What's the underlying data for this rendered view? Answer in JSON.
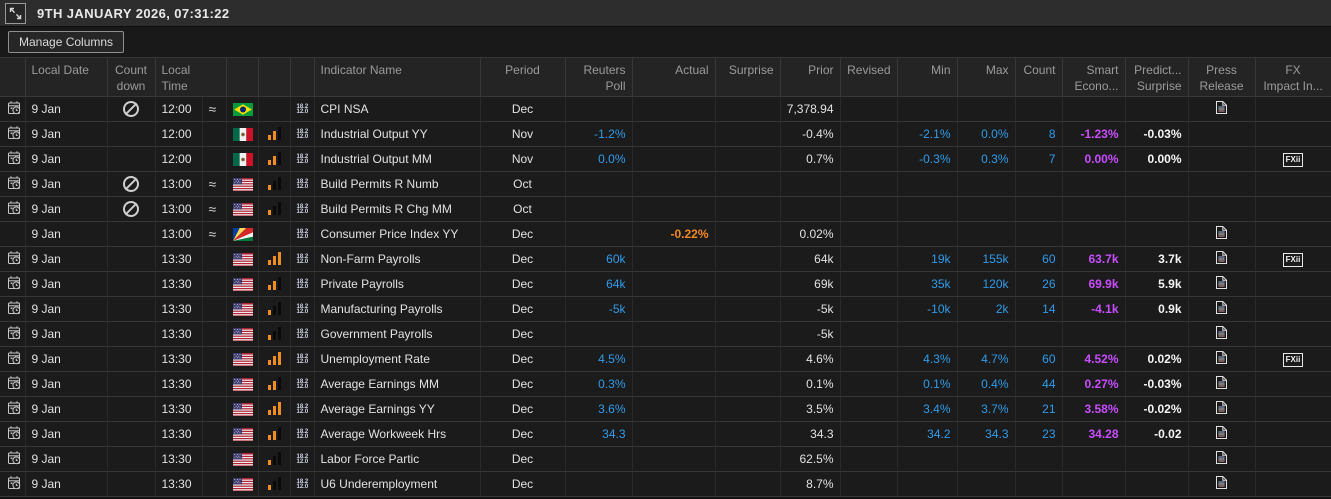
{
  "titlebar": {
    "title": "9TH JANUARY 2026, 07:31:22"
  },
  "toolbar": {
    "manage_columns_label": "Manage Columns"
  },
  "colors": {
    "poll_blue": "#2f9ceb",
    "smart_magenta": "#c94dff",
    "actual_orange": "#f5891f",
    "importance_orange": "#ef8d1e"
  },
  "icons": {
    "fx_impact_label": "FXii",
    "mini_table_icon_lines": [
      "18.2",
      "12.0"
    ]
  },
  "table": {
    "headers": [
      "",
      "Local Date",
      "Count\ndown",
      "Local\nTime",
      "",
      "",
      "",
      "",
      "Indicator Name",
      "Period",
      "Reuters\nPoll",
      "Actual",
      "Surprise",
      "Prior",
      "Revised",
      "Min",
      "Max",
      "Count",
      "Smart\nEcono...",
      "Predict...\nSurprise",
      "Press\nRelease",
      "FX\nImpact In..."
    ],
    "rows": [
      {
        "calendar": true,
        "local_date": "9 Jan",
        "countdown_blocked": true,
        "local_time": "12:00",
        "approx": true,
        "country": "brazil",
        "importance": null,
        "name": "CPI NSA",
        "period": "Dec",
        "reuters_poll": "",
        "actual": "",
        "surprise": "",
        "prior": "7,378.94",
        "revised": "",
        "min": "",
        "max": "",
        "count": "",
        "smart": "",
        "predict": "",
        "press_release": true,
        "fx_impact": false
      },
      {
        "calendar": true,
        "local_date": "9 Jan",
        "countdown_blocked": false,
        "local_time": "12:00",
        "approx": false,
        "country": "mexico",
        "importance": 2,
        "name": "Industrial Output YY",
        "period": "Nov",
        "reuters_poll": "-1.2%",
        "actual": "",
        "surprise": "",
        "prior": "-0.4%",
        "revised": "",
        "min": "-2.1%",
        "max": "0.0%",
        "count": "8",
        "smart": "-1.23%",
        "predict": "-0.03%",
        "press_release": false,
        "fx_impact": false
      },
      {
        "calendar": true,
        "local_date": "9 Jan",
        "countdown_blocked": false,
        "local_time": "12:00",
        "approx": false,
        "country": "mexico",
        "importance": 2,
        "name": "Industrial Output MM",
        "period": "Nov",
        "reuters_poll": "0.0%",
        "actual": "",
        "surprise": "",
        "prior": "0.7%",
        "revised": "",
        "min": "-0.3%",
        "max": "0.3%",
        "count": "7",
        "smart": "0.00%",
        "predict": "0.00%",
        "press_release": false,
        "fx_impact": true
      },
      {
        "calendar": true,
        "local_date": "9 Jan",
        "countdown_blocked": true,
        "local_time": "13:00",
        "approx": true,
        "country": "us",
        "importance": 1,
        "name": "Build Permits R Numb",
        "period": "Oct",
        "reuters_poll": "",
        "actual": "",
        "surprise": "",
        "prior": "",
        "revised": "",
        "min": "",
        "max": "",
        "count": "",
        "smart": "",
        "predict": "",
        "press_release": false,
        "fx_impact": false
      },
      {
        "calendar": true,
        "local_date": "9 Jan",
        "countdown_blocked": true,
        "local_time": "13:00",
        "approx": true,
        "country": "us",
        "importance": 1,
        "name": "Build Permits R Chg MM",
        "period": "Oct",
        "reuters_poll": "",
        "actual": "",
        "surprise": "",
        "prior": "",
        "revised": "",
        "min": "",
        "max": "",
        "count": "",
        "smart": "",
        "predict": "",
        "press_release": false,
        "fx_impact": false
      },
      {
        "calendar": false,
        "local_date": "9 Jan",
        "countdown_blocked": false,
        "local_time": "13:00",
        "approx": true,
        "country": "seychelles",
        "importance": null,
        "name": "Consumer Price Index YY",
        "period": "Dec",
        "reuters_poll": "",
        "actual": "-0.22%",
        "surprise": "",
        "prior": "0.02%",
        "revised": "",
        "min": "",
        "max": "",
        "count": "",
        "smart": "",
        "predict": "",
        "press_release": true,
        "fx_impact": false
      },
      {
        "calendar": true,
        "local_date": "9 Jan",
        "countdown_blocked": false,
        "local_time": "13:30",
        "approx": false,
        "country": "us",
        "importance": 3,
        "name": "Non-Farm Payrolls",
        "period": "Dec",
        "reuters_poll": "60k",
        "actual": "",
        "surprise": "",
        "prior": "64k",
        "revised": "",
        "min": "19k",
        "max": "155k",
        "count": "60",
        "smart": "63.7k",
        "predict": "3.7k",
        "press_release": true,
        "fx_impact": true
      },
      {
        "calendar": true,
        "local_date": "9 Jan",
        "countdown_blocked": false,
        "local_time": "13:30",
        "approx": false,
        "country": "us",
        "importance": 2,
        "name": "Private Payrolls",
        "period": "Dec",
        "reuters_poll": "64k",
        "actual": "",
        "surprise": "",
        "prior": "69k",
        "revised": "",
        "min": "35k",
        "max": "120k",
        "count": "26",
        "smart": "69.9k",
        "predict": "5.9k",
        "press_release": true,
        "fx_impact": false
      },
      {
        "calendar": true,
        "local_date": "9 Jan",
        "countdown_blocked": false,
        "local_time": "13:30",
        "approx": false,
        "country": "us",
        "importance": 1,
        "name": "Manufacturing Payrolls",
        "period": "Dec",
        "reuters_poll": "-5k",
        "actual": "",
        "surprise": "",
        "prior": "-5k",
        "revised": "",
        "min": "-10k",
        "max": "2k",
        "count": "14",
        "smart": "-4.1k",
        "predict": "0.9k",
        "press_release": true,
        "fx_impact": false
      },
      {
        "calendar": true,
        "local_date": "9 Jan",
        "countdown_blocked": false,
        "local_time": "13:30",
        "approx": false,
        "country": "us",
        "importance": 1,
        "name": "Government Payrolls",
        "period": "Dec",
        "reuters_poll": "",
        "actual": "",
        "surprise": "",
        "prior": "-5k",
        "revised": "",
        "min": "",
        "max": "",
        "count": "",
        "smart": "",
        "predict": "",
        "press_release": true,
        "fx_impact": false
      },
      {
        "calendar": true,
        "local_date": "9 Jan",
        "countdown_blocked": false,
        "local_time": "13:30",
        "approx": false,
        "country": "us",
        "importance": 3,
        "name": "Unemployment Rate",
        "period": "Dec",
        "reuters_poll": "4.5%",
        "actual": "",
        "surprise": "",
        "prior": "4.6%",
        "revised": "",
        "min": "4.3%",
        "max": "4.7%",
        "count": "60",
        "smart": "4.52%",
        "predict": "0.02%",
        "press_release": true,
        "fx_impact": true
      },
      {
        "calendar": true,
        "local_date": "9 Jan",
        "countdown_blocked": false,
        "local_time": "13:30",
        "approx": false,
        "country": "us",
        "importance": 2,
        "name": "Average Earnings MM",
        "period": "Dec",
        "reuters_poll": "0.3%",
        "actual": "",
        "surprise": "",
        "prior": "0.1%",
        "revised": "",
        "min": "0.1%",
        "max": "0.4%",
        "count": "44",
        "smart": "0.27%",
        "predict": "-0.03%",
        "press_release": true,
        "fx_impact": false
      },
      {
        "calendar": true,
        "local_date": "9 Jan",
        "countdown_blocked": false,
        "local_time": "13:30",
        "approx": false,
        "country": "us",
        "importance": 3,
        "name": "Average Earnings YY",
        "period": "Dec",
        "reuters_poll": "3.6%",
        "actual": "",
        "surprise": "",
        "prior": "3.5%",
        "revised": "",
        "min": "3.4%",
        "max": "3.7%",
        "count": "21",
        "smart": "3.58%",
        "predict": "-0.02%",
        "press_release": true,
        "fx_impact": false
      },
      {
        "calendar": true,
        "local_date": "9 Jan",
        "countdown_blocked": false,
        "local_time": "13:30",
        "approx": false,
        "country": "us",
        "importance": 2,
        "name": "Average Workweek Hrs",
        "period": "Dec",
        "reuters_poll": "34.3",
        "actual": "",
        "surprise": "",
        "prior": "34.3",
        "revised": "",
        "min": "34.2",
        "max": "34.3",
        "count": "23",
        "smart": "34.28",
        "predict": "-0.02",
        "press_release": true,
        "fx_impact": false
      },
      {
        "calendar": true,
        "local_date": "9 Jan",
        "countdown_blocked": false,
        "local_time": "13:30",
        "approx": false,
        "country": "us",
        "importance": 1,
        "name": "Labor Force Partic",
        "period": "Dec",
        "reuters_poll": "",
        "actual": "",
        "surprise": "",
        "prior": "62.5%",
        "revised": "",
        "min": "",
        "max": "",
        "count": "",
        "smart": "",
        "predict": "",
        "press_release": true,
        "fx_impact": false
      },
      {
        "calendar": true,
        "local_date": "9 Jan",
        "countdown_blocked": false,
        "local_time": "13:30",
        "approx": false,
        "country": "us",
        "importance": 1,
        "name": "U6 Underemployment",
        "period": "Dec",
        "reuters_poll": "",
        "actual": "",
        "surprise": "",
        "prior": "8.7%",
        "revised": "",
        "min": "",
        "max": "",
        "count": "",
        "smart": "",
        "predict": "",
        "press_release": true,
        "fx_impact": false
      }
    ]
  }
}
